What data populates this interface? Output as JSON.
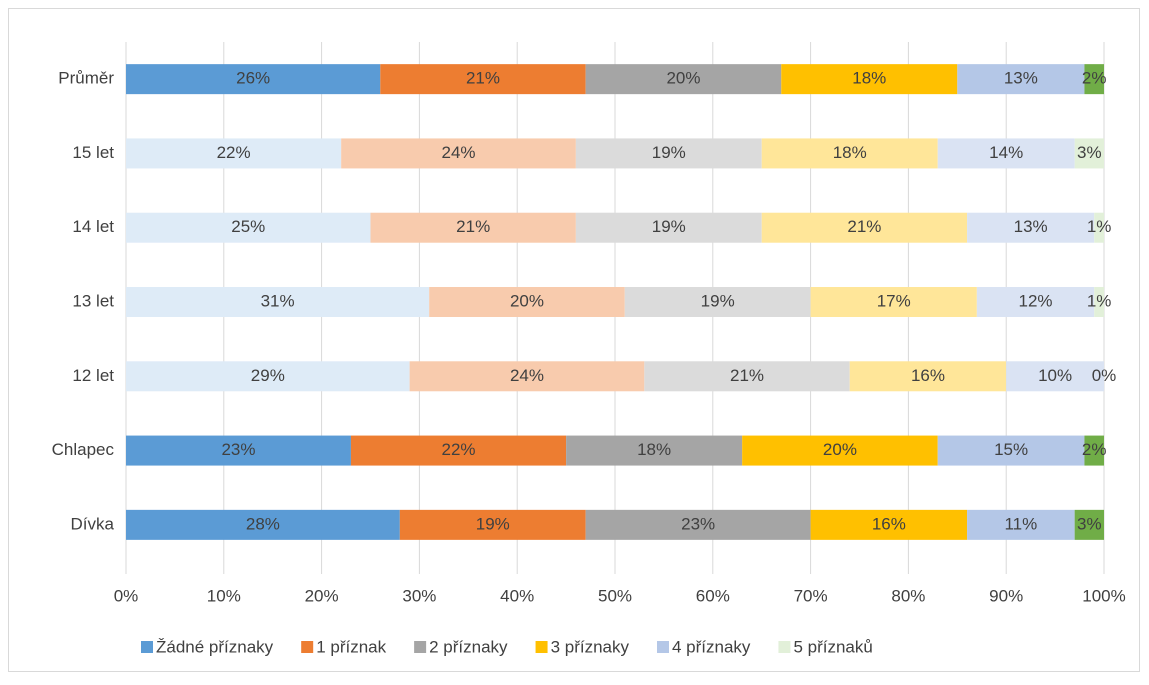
{
  "chart_data": {
    "type": "stacked_bar_horizontal",
    "categories": [
      "Průměr",
      "15 let",
      "14 let",
      "13 let",
      "12 let",
      "Chlapec",
      "Dívka"
    ],
    "series": [
      {
        "name": "Žádné příznaky",
        "color": "#5b9bd5",
        "colors": [
          "#5b9bd5",
          "#deebf7",
          "#deebf7",
          "#deebf7",
          "#deebf7",
          "#5b9bd5",
          "#5b9bd5"
        ],
        "values": [
          26,
          22,
          25,
          31,
          29,
          23,
          28
        ],
        "value_labels": [
          "26%",
          "22%",
          "25%",
          "31%",
          "29%",
          "23%",
          "28%"
        ]
      },
      {
        "name": "1 příznak",
        "color": "#ed7d31",
        "colors": [
          "#ed7d31",
          "#f8cbad",
          "#f8cbad",
          "#f8cbad",
          "#f8cbad",
          "#ed7d31",
          "#ed7d31"
        ],
        "values": [
          21,
          24,
          21,
          20,
          24,
          22,
          19
        ],
        "value_labels": [
          "21%",
          "24%",
          "21%",
          "20%",
          "24%",
          "22%",
          "19%"
        ]
      },
      {
        "name": "2 příznaky",
        "color": "#a5a5a5",
        "colors": [
          "#a5a5a5",
          "#dbdbdb",
          "#dbdbdb",
          "#dbdbdb",
          "#dbdbdb",
          "#a5a5a5",
          "#a5a5a5"
        ],
        "values": [
          20,
          19,
          19,
          19,
          21,
          18,
          23
        ],
        "value_labels": [
          "20%",
          "19%",
          "19%",
          "19%",
          "21%",
          "18%",
          "23%"
        ]
      },
      {
        "name": "3 příznaky",
        "color": "#ffc000",
        "colors": [
          "#ffc000",
          "#ffe699",
          "#ffe699",
          "#ffe699",
          "#ffe699",
          "#ffc000",
          "#ffc000"
        ],
        "values": [
          18,
          18,
          21,
          17,
          16,
          20,
          16
        ],
        "value_labels": [
          "18%",
          "18%",
          "21%",
          "17%",
          "16%",
          "20%",
          "16%"
        ]
      },
      {
        "name": "4 příznaky",
        "color": "#b4c7e7",
        "colors": [
          "#b4c7e7",
          "#dae3f3",
          "#dae3f3",
          "#dae3f3",
          "#dae3f3",
          "#b4c7e7",
          "#b4c7e7"
        ],
        "values": [
          13,
          14,
          13,
          12,
          10,
          15,
          11
        ],
        "value_labels": [
          "13%",
          "14%",
          "13%",
          "12%",
          "10%",
          "15%",
          "11%"
        ]
      },
      {
        "name": "5 příznaků",
        "color": "#e2f0d9",
        "colors": [
          "#70ad47",
          "#e2f0d9",
          "#e2f0d9",
          "#e2f0d9",
          "#e2f0d9",
          "#70ad47",
          "#70ad47"
        ],
        "values": [
          2,
          3,
          1,
          1,
          0,
          2,
          3
        ],
        "value_labels": [
          "2%",
          "3%",
          "1%",
          "1%",
          "0%",
          "2%",
          "3%"
        ]
      }
    ],
    "xlim": [
      0,
      100
    ],
    "xticks": [
      {
        "value": 0,
        "label": "0%"
      },
      {
        "value": 10,
        "label": "10%"
      },
      {
        "value": 20,
        "label": "20%"
      },
      {
        "value": 30,
        "label": "30%"
      },
      {
        "value": 40,
        "label": "40%"
      },
      {
        "value": 50,
        "label": "50%"
      },
      {
        "value": 60,
        "label": "60%"
      },
      {
        "value": 70,
        "label": "70%"
      },
      {
        "value": 80,
        "label": "80%"
      },
      {
        "value": 90,
        "label": "90%"
      },
      {
        "value": 100,
        "label": "100%"
      }
    ],
    "grid": true,
    "legend": "bottom"
  }
}
